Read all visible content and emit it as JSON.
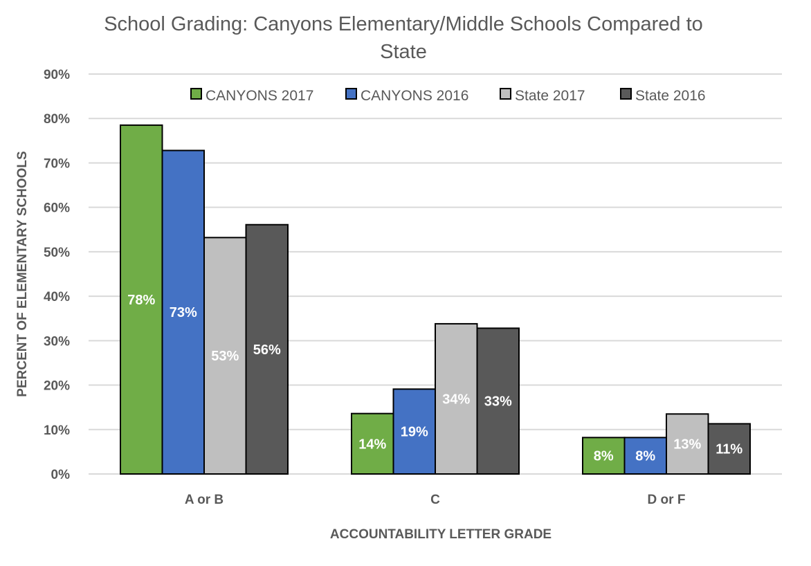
{
  "chart_data": {
    "type": "bar",
    "title": "School Grading: Canyons Elementary/Middle Schools Compared to State",
    "title_lines": [
      "School Grading: Canyons Elementary/Middle Schools Compared to",
      "State"
    ],
    "xlabel": "ACCOUNTABILITY LETTER GRADE",
    "ylabel": "PERCENT OF ELEMENTARY SCHOOLS",
    "categories": [
      "A or B",
      "C",
      "D or F"
    ],
    "ylim": [
      0,
      90
    ],
    "yticks": [
      0,
      10,
      20,
      30,
      40,
      50,
      60,
      70,
      80,
      90
    ],
    "ytick_labels": [
      "0%",
      "10%",
      "20%",
      "30%",
      "40%",
      "50%",
      "60%",
      "70%",
      "80%",
      "90%"
    ],
    "grid": true,
    "legend_position": "top",
    "series": [
      {
        "name": "CANYONS 2017",
        "color": "#70ad47",
        "label_color": "#ffffff",
        "values": [
          78.5,
          13.6,
          8.2
        ],
        "labels": [
          "78%",
          "14%",
          "8%"
        ]
      },
      {
        "name": "CANYONS 2016",
        "color": "#4472c4",
        "label_color": "#ffffff",
        "values": [
          72.8,
          19.1,
          8.2
        ],
        "labels": [
          "73%",
          "19%",
          "8%"
        ]
      },
      {
        "name": "State 2017",
        "color": "#bfbfbf",
        "label_color": "#ffffff",
        "values": [
          53.2,
          33.8,
          13.5
        ],
        "labels": [
          "53%",
          "34%",
          "13%"
        ]
      },
      {
        "name": "State 2016",
        "color": "#595959",
        "label_color": "#ffffff",
        "values": [
          56.1,
          32.8,
          11.3
        ],
        "labels": [
          "56%",
          "33%",
          "11%"
        ]
      }
    ]
  }
}
